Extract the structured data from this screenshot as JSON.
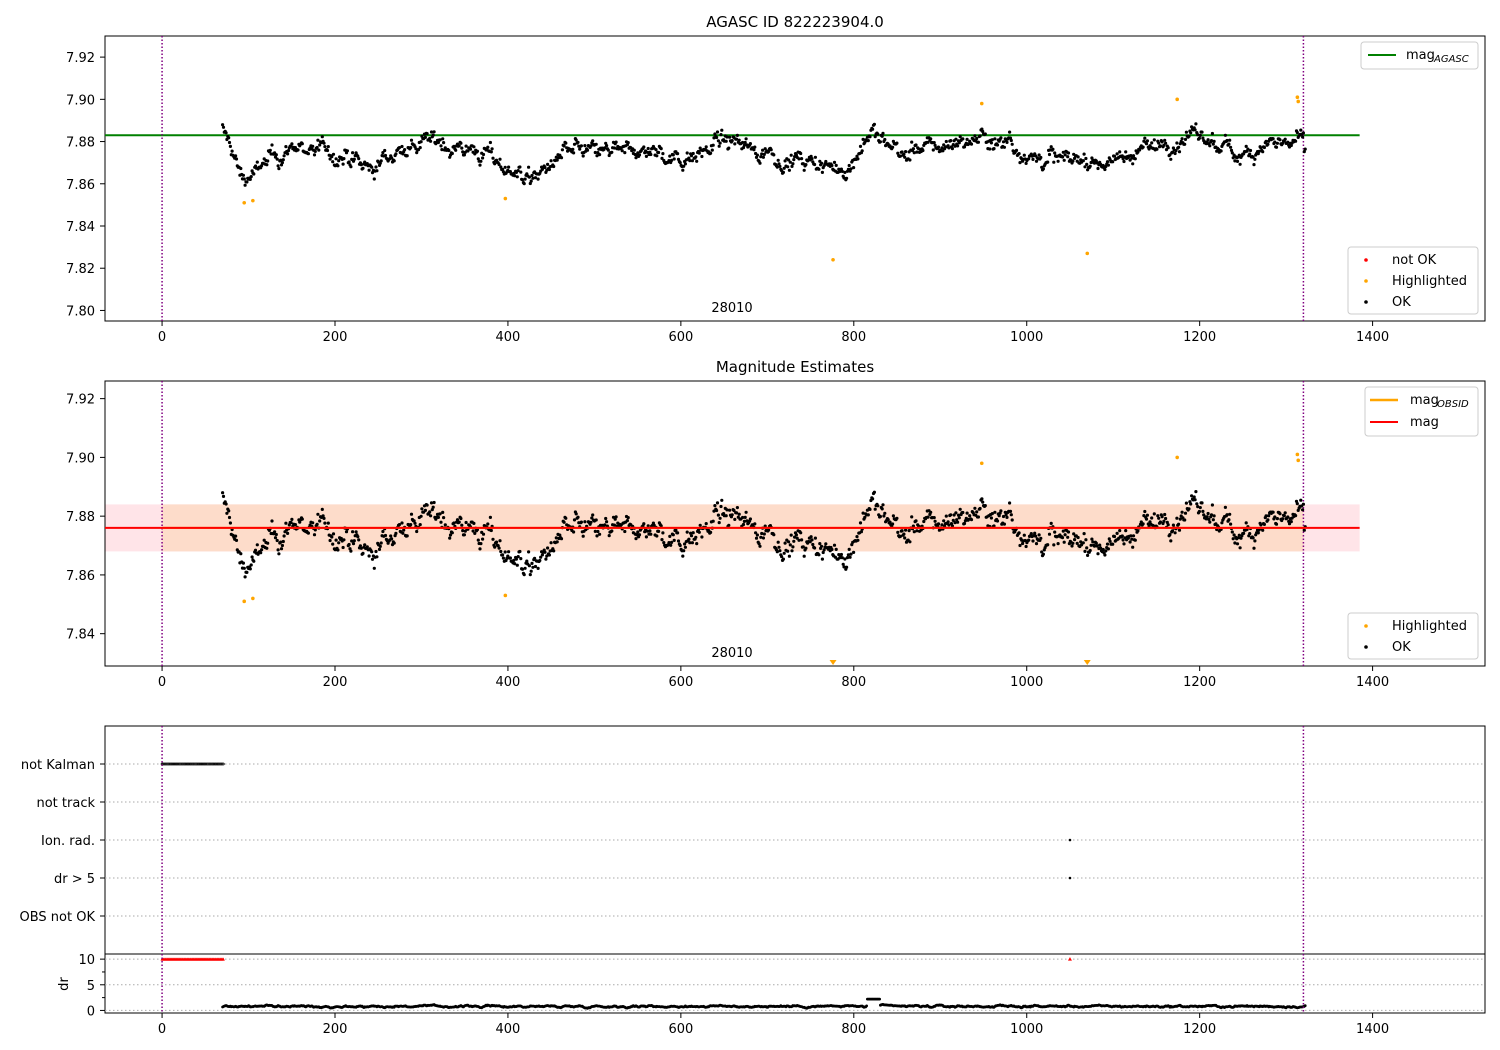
{
  "colors": {
    "ok": "#000000",
    "highlighted": "#ffa500",
    "not_ok": "#ff0000",
    "agasc_line": "#008000",
    "obsid_line": "#ffa500",
    "mag_line": "#ff0000",
    "band_outer": "#ffe4e8",
    "band_inner": "#fddcca",
    "obs_boundary": "#800080"
  },
  "chart_data": [
    {
      "type": "scatter",
      "title": "AGASC ID 822223904.0",
      "xlim": [
        -66,
        1530
      ],
      "ylim": [
        7.795,
        7.93
      ],
      "xticks": [
        0,
        200,
        400,
        600,
        800,
        1000,
        1200,
        1400
      ],
      "yticks": [
        7.8,
        7.82,
        7.84,
        7.86,
        7.88,
        7.9,
        7.92
      ],
      "obs_boundaries": [
        0,
        1320
      ],
      "obs_label": "28010",
      "hlines": [
        {
          "name": "mag_AGASC",
          "y": 7.883,
          "x": [
            -66,
            1385
          ],
          "color": "agasc_line"
        }
      ],
      "legend_top": [
        {
          "label": "mag",
          "sub": "AGASC",
          "kind": "line",
          "color": "agasc_line"
        }
      ],
      "legend_bottom": [
        {
          "label": "not OK",
          "kind": "dot",
          "color": "not_ok"
        },
        {
          "label": "Highlighted",
          "kind": "dot",
          "color": "highlighted"
        },
        {
          "label": "OK",
          "kind": "dot",
          "color": "ok"
        }
      ],
      "highlighted_points": [
        [
          95,
          7.851
        ],
        [
          105,
          7.852
        ],
        [
          397,
          7.853
        ],
        [
          776,
          7.824
        ],
        [
          948,
          7.898
        ],
        [
          1070,
          7.827
        ],
        [
          1174,
          7.9
        ],
        [
          1313,
          7.901
        ],
        [
          1314,
          7.899
        ]
      ],
      "ok_series": {
        "x_start": 70,
        "x_end": 1322,
        "count": 1250
      }
    },
    {
      "type": "scatter",
      "title": "Magnitude Estimates",
      "xlim": [
        -66,
        1530
      ],
      "ylim": [
        7.829,
        7.926
      ],
      "xticks": [
        0,
        200,
        400,
        600,
        800,
        1000,
        1200,
        1400
      ],
      "yticks": [
        7.84,
        7.86,
        7.88,
        7.9,
        7.92
      ],
      "obs_boundaries": [
        0,
        1320
      ],
      "obs_label": "28010",
      "hlines": [
        {
          "name": "mag_OBSID",
          "y": 7.876,
          "x": [
            0,
            1320
          ],
          "color": "obsid_line"
        },
        {
          "name": "mag",
          "y": 7.876,
          "x": [
            -66,
            1385
          ],
          "color": "mag_line"
        }
      ],
      "bands": [
        {
          "y": [
            7.868,
            7.884
          ],
          "x": [
            -66,
            1385
          ],
          "color": "band_outer"
        },
        {
          "y": [
            7.868,
            7.884
          ],
          "x": [
            0,
            1320
          ],
          "color": "band_inner"
        }
      ],
      "legend_top": [
        {
          "label": "mag",
          "sub": "OBSID",
          "kind": "line",
          "color": "obsid_line"
        },
        {
          "label": "mag",
          "sub": "",
          "kind": "line",
          "color": "mag_line"
        }
      ],
      "legend_bottom": [
        {
          "label": "Highlighted",
          "kind": "dot",
          "color": "highlighted"
        },
        {
          "label": "OK",
          "kind": "dot",
          "color": "ok"
        }
      ],
      "highlighted_points": [
        [
          95,
          7.851
        ],
        [
          105,
          7.852
        ],
        [
          397,
          7.853
        ],
        [
          948,
          7.898
        ],
        [
          1174,
          7.9
        ],
        [
          1313,
          7.901
        ],
        [
          1314,
          7.899
        ]
      ],
      "below_range_markers": [
        776,
        1070
      ],
      "ok_series": {
        "x_start": 70,
        "x_end": 1322,
        "count": 1250
      }
    },
    {
      "type": "scatter",
      "title": "",
      "xlim": [
        -66,
        1530
      ],
      "categories": [
        "not Kalman",
        "not track",
        "Ion. rad.",
        "dr > 5",
        "OBS not OK"
      ],
      "flags": {
        "not Kalman": {
          "x_start": 0,
          "x_end": 72
        },
        "Ion. rad.": {
          "points": [
            1050
          ]
        },
        "dr > 5": {
          "points": [
            1050
          ]
        }
      },
      "obs_boundaries": [
        0,
        1320
      ]
    },
    {
      "type": "scatter",
      "title": "",
      "ylabel": "dr",
      "xlim": [
        -66,
        1530
      ],
      "ylim": [
        -0.5,
        11
      ],
      "xticks": [
        0,
        200,
        400,
        600,
        800,
        1000,
        1200,
        1400
      ],
      "yticks": [
        0,
        5,
        10
      ],
      "clipped_points": {
        "value": 10,
        "x_start": 0,
        "x_end": 72,
        "extra": [
          1050
        ]
      },
      "ok_series": {
        "x_start": 70,
        "x_end": 1322,
        "count": 1250,
        "typical": 0.8
      },
      "obs_boundaries": [
        0,
        1320
      ]
    }
  ]
}
